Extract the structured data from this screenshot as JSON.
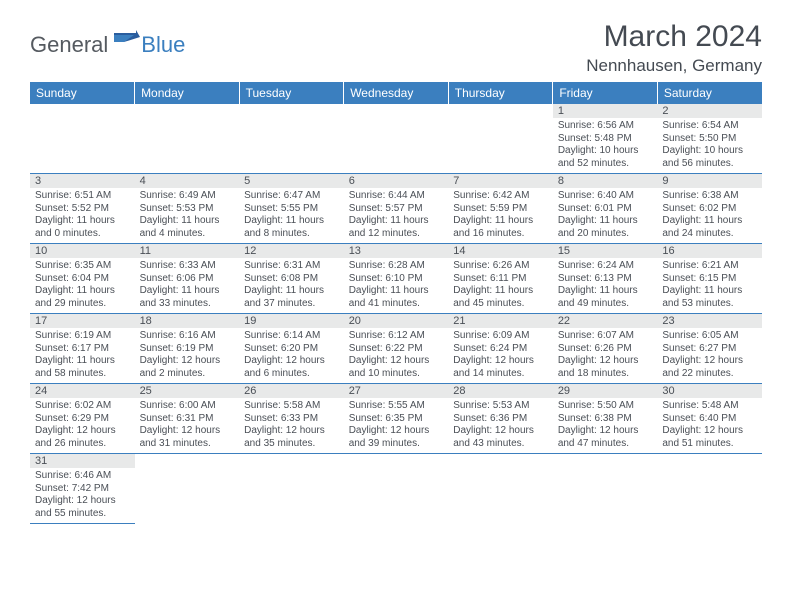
{
  "logo": {
    "general": "General",
    "blue": "Blue"
  },
  "header": {
    "month_title": "March 2024",
    "location": "Nennhausen, Germany"
  },
  "calendar": {
    "type": "calendar-table",
    "columns": [
      "Sunday",
      "Monday",
      "Tuesday",
      "Wednesday",
      "Thursday",
      "Friday",
      "Saturday"
    ],
    "header_bg": "#3b7fbf",
    "header_fg": "#ffffff",
    "daynum_bg": "#e8e9e9",
    "text_color": "#4a4f56",
    "row_border": "#3b7fbf",
    "daynum_fontsize": 11,
    "daytext_fontsize": 10,
    "weeks": [
      [
        null,
        null,
        null,
        null,
        null,
        {
          "n": "1",
          "sunrise": "6:56 AM",
          "sunset": "5:48 PM",
          "daylight": "10 hours and 52 minutes."
        },
        {
          "n": "2",
          "sunrise": "6:54 AM",
          "sunset": "5:50 PM",
          "daylight": "10 hours and 56 minutes."
        }
      ],
      [
        {
          "n": "3",
          "sunrise": "6:51 AM",
          "sunset": "5:52 PM",
          "daylight": "11 hours and 0 minutes."
        },
        {
          "n": "4",
          "sunrise": "6:49 AM",
          "sunset": "5:53 PM",
          "daylight": "11 hours and 4 minutes."
        },
        {
          "n": "5",
          "sunrise": "6:47 AM",
          "sunset": "5:55 PM",
          "daylight": "11 hours and 8 minutes."
        },
        {
          "n": "6",
          "sunrise": "6:44 AM",
          "sunset": "5:57 PM",
          "daylight": "11 hours and 12 minutes."
        },
        {
          "n": "7",
          "sunrise": "6:42 AM",
          "sunset": "5:59 PM",
          "daylight": "11 hours and 16 minutes."
        },
        {
          "n": "8",
          "sunrise": "6:40 AM",
          "sunset": "6:01 PM",
          "daylight": "11 hours and 20 minutes."
        },
        {
          "n": "9",
          "sunrise": "6:38 AM",
          "sunset": "6:02 PM",
          "daylight": "11 hours and 24 minutes."
        }
      ],
      [
        {
          "n": "10",
          "sunrise": "6:35 AM",
          "sunset": "6:04 PM",
          "daylight": "11 hours and 29 minutes."
        },
        {
          "n": "11",
          "sunrise": "6:33 AM",
          "sunset": "6:06 PM",
          "daylight": "11 hours and 33 minutes."
        },
        {
          "n": "12",
          "sunrise": "6:31 AM",
          "sunset": "6:08 PM",
          "daylight": "11 hours and 37 minutes."
        },
        {
          "n": "13",
          "sunrise": "6:28 AM",
          "sunset": "6:10 PM",
          "daylight": "11 hours and 41 minutes."
        },
        {
          "n": "14",
          "sunrise": "6:26 AM",
          "sunset": "6:11 PM",
          "daylight": "11 hours and 45 minutes."
        },
        {
          "n": "15",
          "sunrise": "6:24 AM",
          "sunset": "6:13 PM",
          "daylight": "11 hours and 49 minutes."
        },
        {
          "n": "16",
          "sunrise": "6:21 AM",
          "sunset": "6:15 PM",
          "daylight": "11 hours and 53 minutes."
        }
      ],
      [
        {
          "n": "17",
          "sunrise": "6:19 AM",
          "sunset": "6:17 PM",
          "daylight": "11 hours and 58 minutes."
        },
        {
          "n": "18",
          "sunrise": "6:16 AM",
          "sunset": "6:19 PM",
          "daylight": "12 hours and 2 minutes."
        },
        {
          "n": "19",
          "sunrise": "6:14 AM",
          "sunset": "6:20 PM",
          "daylight": "12 hours and 6 minutes."
        },
        {
          "n": "20",
          "sunrise": "6:12 AM",
          "sunset": "6:22 PM",
          "daylight": "12 hours and 10 minutes."
        },
        {
          "n": "21",
          "sunrise": "6:09 AM",
          "sunset": "6:24 PM",
          "daylight": "12 hours and 14 minutes."
        },
        {
          "n": "22",
          "sunrise": "6:07 AM",
          "sunset": "6:26 PM",
          "daylight": "12 hours and 18 minutes."
        },
        {
          "n": "23",
          "sunrise": "6:05 AM",
          "sunset": "6:27 PM",
          "daylight": "12 hours and 22 minutes."
        }
      ],
      [
        {
          "n": "24",
          "sunrise": "6:02 AM",
          "sunset": "6:29 PM",
          "daylight": "12 hours and 26 minutes."
        },
        {
          "n": "25",
          "sunrise": "6:00 AM",
          "sunset": "6:31 PM",
          "daylight": "12 hours and 31 minutes."
        },
        {
          "n": "26",
          "sunrise": "5:58 AM",
          "sunset": "6:33 PM",
          "daylight": "12 hours and 35 minutes."
        },
        {
          "n": "27",
          "sunrise": "5:55 AM",
          "sunset": "6:35 PM",
          "daylight": "12 hours and 39 minutes."
        },
        {
          "n": "28",
          "sunrise": "5:53 AM",
          "sunset": "6:36 PM",
          "daylight": "12 hours and 43 minutes."
        },
        {
          "n": "29",
          "sunrise": "5:50 AM",
          "sunset": "6:38 PM",
          "daylight": "12 hours and 47 minutes."
        },
        {
          "n": "30",
          "sunrise": "5:48 AM",
          "sunset": "6:40 PM",
          "daylight": "12 hours and 51 minutes."
        }
      ],
      [
        {
          "n": "31",
          "sunrise": "6:46 AM",
          "sunset": "7:42 PM",
          "daylight": "12 hours and 55 minutes."
        },
        null,
        null,
        null,
        null,
        null,
        null
      ]
    ]
  }
}
